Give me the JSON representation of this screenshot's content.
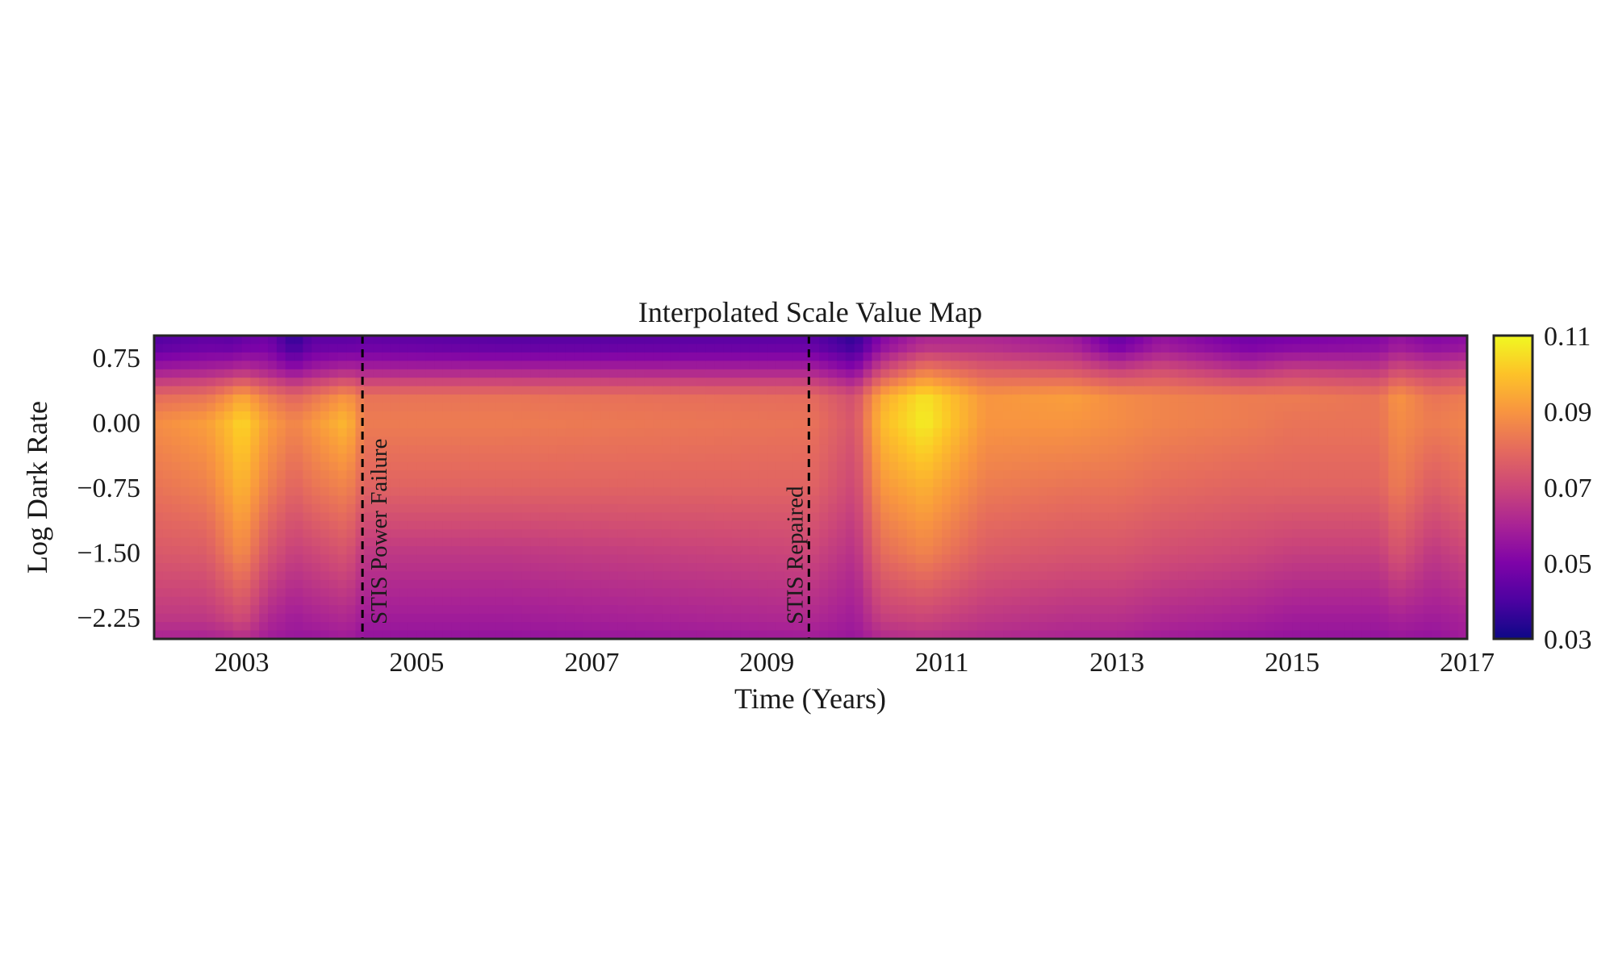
{
  "chart_data": {
    "type": "heatmap",
    "title": "Interpolated Scale Value Map",
    "xlabel": "Time (Years)",
    "ylabel": "Log Dark Rate",
    "xlim": [
      2002.0,
      2017.0
    ],
    "ylim": [
      -2.5,
      1.0
    ],
    "x_ticks": [
      {
        "value": 2003,
        "label": "2003"
      },
      {
        "value": 2005,
        "label": "2005"
      },
      {
        "value": 2007,
        "label": "2007"
      },
      {
        "value": 2009,
        "label": "2009"
      },
      {
        "value": 2011,
        "label": "2011"
      },
      {
        "value": 2013,
        "label": "2013"
      },
      {
        "value": 2015,
        "label": "2015"
      },
      {
        "value": 2017,
        "label": "2017"
      }
    ],
    "y_ticks": [
      {
        "value": 0.75,
        "label": "0.75"
      },
      {
        "value": 0.0,
        "label": "0.00"
      },
      {
        "value": -0.75,
        "label": "−0.75"
      },
      {
        "value": -1.5,
        "label": "−1.50"
      },
      {
        "value": -2.25,
        "label": "−2.25"
      }
    ],
    "colorbar": {
      "colormap": "plasma",
      "range": [
        0.03,
        0.11
      ],
      "ticks": [
        {
          "value": 0.03,
          "label": "0.03"
        },
        {
          "value": 0.05,
          "label": "0.05"
        },
        {
          "value": 0.07,
          "label": "0.07"
        },
        {
          "value": 0.09,
          "label": "0.09"
        },
        {
          "value": 0.11,
          "label": "0.11"
        }
      ]
    },
    "annotations": [
      {
        "x": 2004.38,
        "label": "STIS Power Failure",
        "style": "dashed"
      },
      {
        "x": 2009.48,
        "label": "STIS Repaired",
        "style": "dashed"
      }
    ],
    "grid": false,
    "approx_values": {
      "years": [
        2002.0,
        2002.6,
        2002.9,
        2003.0,
        2003.3,
        2003.6,
        2003.8,
        2004.2,
        2004.4,
        2006.0,
        2009.5,
        2010.0,
        2010.3,
        2010.8,
        2011.5,
        2012.5,
        2013.0,
        2013.5,
        2014.5,
        2015.0,
        2016.0,
        2016.2,
        2016.6,
        2017.0
      ],
      "log_rate": [
        0.9,
        0.6,
        0.3,
        0.0,
        -0.75,
        -1.5,
        -2.25,
        -2.5
      ],
      "values": [
        [
          0.042,
          0.058,
          0.08,
          0.088,
          0.082,
          0.075,
          0.066,
          0.06
        ],
        [
          0.045,
          0.06,
          0.082,
          0.092,
          0.085,
          0.076,
          0.066,
          0.06
        ],
        [
          0.044,
          0.062,
          0.09,
          0.1,
          0.094,
          0.085,
          0.07,
          0.062
        ],
        [
          0.046,
          0.064,
          0.094,
          0.104,
          0.097,
          0.088,
          0.072,
          0.064
        ],
        [
          0.048,
          0.06,
          0.084,
          0.092,
          0.085,
          0.074,
          0.062,
          0.058
        ],
        [
          0.036,
          0.054,
          0.078,
          0.086,
          0.078,
          0.068,
          0.058,
          0.056
        ],
        [
          0.044,
          0.058,
          0.082,
          0.09,
          0.082,
          0.07,
          0.06,
          0.056
        ],
        [
          0.044,
          0.062,
          0.09,
          0.098,
          0.086,
          0.074,
          0.062,
          0.058
        ],
        [
          0.045,
          0.06,
          0.082,
          0.084,
          0.078,
          0.066,
          0.058,
          0.055
        ],
        [
          0.043,
          0.06,
          0.082,
          0.084,
          0.078,
          0.066,
          0.058,
          0.055
        ],
        [
          0.044,
          0.06,
          0.08,
          0.082,
          0.078,
          0.07,
          0.062,
          0.058
        ],
        [
          0.036,
          0.052,
          0.072,
          0.074,
          0.07,
          0.064,
          0.058,
          0.056
        ],
        [
          0.052,
          0.07,
          0.094,
          0.098,
          0.09,
          0.08,
          0.068,
          0.062
        ],
        [
          0.062,
          0.084,
          0.106,
          0.108,
          0.096,
          0.086,
          0.07,
          0.064
        ],
        [
          0.062,
          0.076,
          0.09,
          0.09,
          0.084,
          0.076,
          0.066,
          0.062
        ],
        [
          0.058,
          0.074,
          0.092,
          0.09,
          0.082,
          0.074,
          0.064,
          0.06
        ],
        [
          0.046,
          0.068,
          0.088,
          0.088,
          0.082,
          0.074,
          0.064,
          0.06
        ],
        [
          0.056,
          0.072,
          0.086,
          0.086,
          0.08,
          0.072,
          0.062,
          0.058
        ],
        [
          0.048,
          0.064,
          0.084,
          0.084,
          0.078,
          0.07,
          0.06,
          0.056
        ],
        [
          0.05,
          0.068,
          0.084,
          0.082,
          0.078,
          0.068,
          0.058,
          0.055
        ],
        [
          0.052,
          0.066,
          0.082,
          0.082,
          0.078,
          0.068,
          0.058,
          0.055
        ],
        [
          0.056,
          0.072,
          0.09,
          0.088,
          0.084,
          0.074,
          0.06,
          0.056
        ],
        [
          0.052,
          0.068,
          0.082,
          0.084,
          0.076,
          0.066,
          0.058,
          0.055
        ],
        [
          0.054,
          0.07,
          0.084,
          0.086,
          0.08,
          0.07,
          0.06,
          0.058
        ]
      ]
    }
  }
}
